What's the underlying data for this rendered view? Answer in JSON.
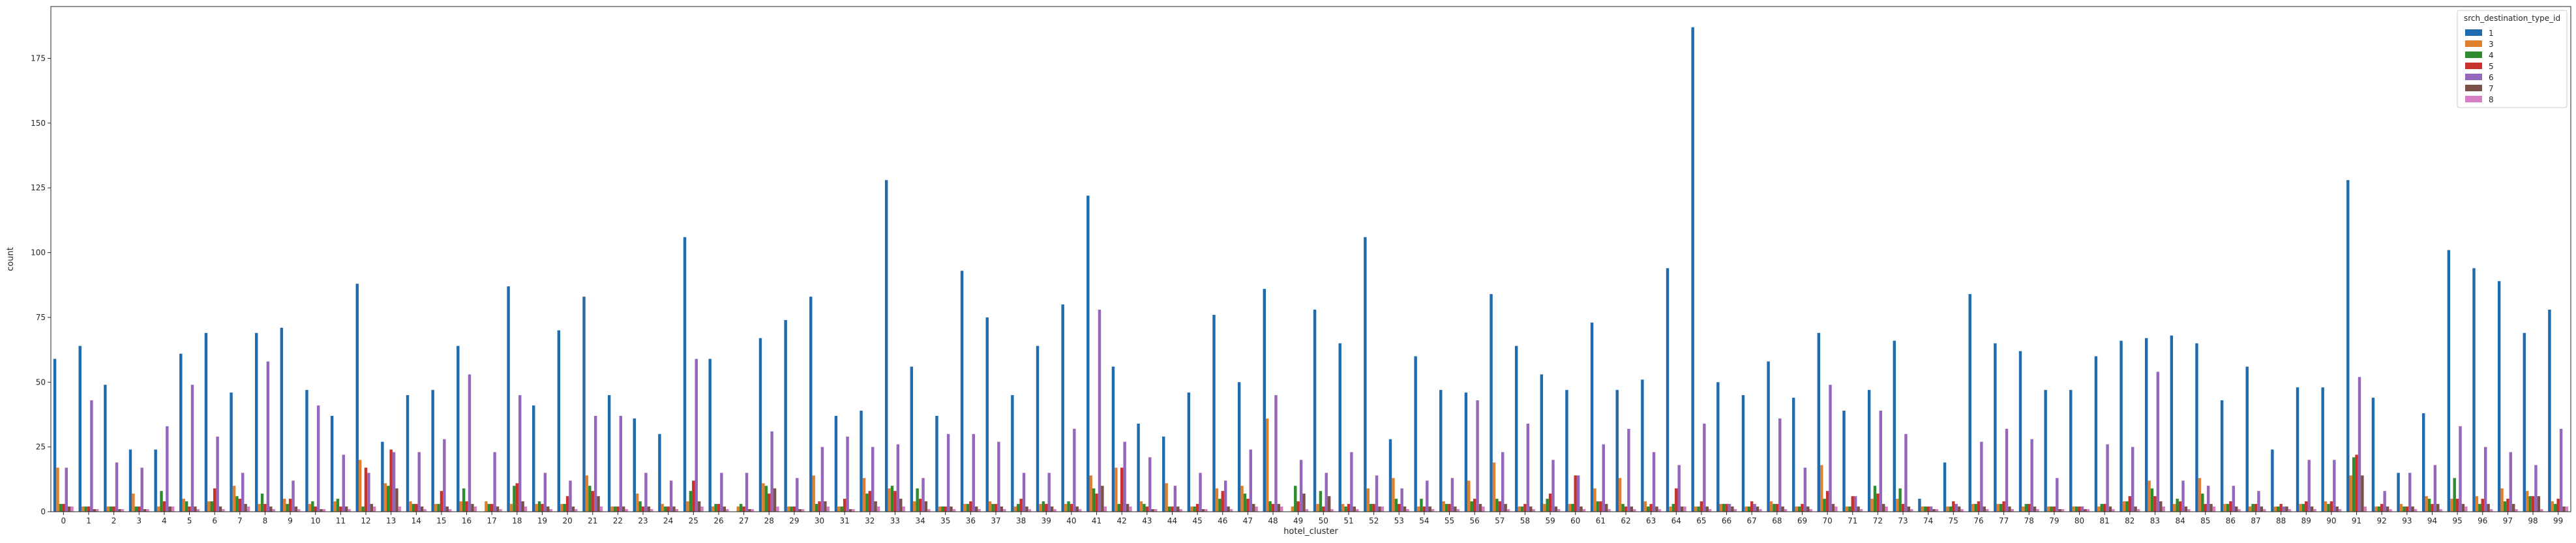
{
  "chart_data": {
    "type": "bar",
    "xlabel": "hotel_cluster",
    "ylabel": "count",
    "ylim": [
      0,
      195
    ],
    "yticks": [
      0,
      25,
      50,
      75,
      100,
      125,
      150,
      175
    ],
    "grid": false,
    "legend": {
      "title": "srch_destination_type_id",
      "placement": "top-right"
    },
    "categories": [
      "0",
      "1",
      "2",
      "3",
      "4",
      "5",
      "6",
      "7",
      "8",
      "9",
      "10",
      "11",
      "12",
      "13",
      "14",
      "15",
      "16",
      "17",
      "18",
      "19",
      "20",
      "21",
      "22",
      "23",
      "24",
      "25",
      "26",
      "27",
      "28",
      "29",
      "30",
      "31",
      "32",
      "33",
      "34",
      "35",
      "36",
      "37",
      "38",
      "39",
      "40",
      "41",
      "42",
      "43",
      "44",
      "45",
      "46",
      "47",
      "48",
      "49",
      "50",
      "51",
      "52",
      "53",
      "54",
      "55",
      "56",
      "57",
      "58",
      "59",
      "60",
      "61",
      "62",
      "63",
      "64",
      "65",
      "66",
      "67",
      "68",
      "69",
      "70",
      "71",
      "72",
      "73",
      "74",
      "75",
      "76",
      "77",
      "78",
      "79",
      "80",
      "81",
      "82",
      "83",
      "84",
      "85",
      "86",
      "87",
      "88",
      "89",
      "90",
      "91",
      "92",
      "93",
      "94",
      "95",
      "96",
      "97",
      "98",
      "99"
    ],
    "series": [
      {
        "name": "1",
        "color": "#1f6bb0",
        "values": [
          59,
          64,
          49,
          24,
          24,
          61,
          69,
          46,
          69,
          71,
          47,
          37,
          88,
          27,
          45,
          47,
          64,
          0,
          87,
          41,
          70,
          83,
          45,
          36,
          30,
          106,
          59,
          0,
          67,
          74,
          83,
          37,
          39,
          128,
          56,
          37,
          93,
          75,
          45,
          64,
          80,
          122,
          56,
          34,
          29,
          46,
          76,
          50,
          86,
          0,
          78,
          65,
          106,
          28,
          60,
          47,
          46,
          84,
          64,
          53,
          47,
          73,
          47,
          51,
          94,
          187,
          50,
          45,
          58,
          44,
          69,
          39,
          47,
          66,
          5,
          19,
          84,
          65,
          62,
          47,
          47,
          60,
          66,
          67,
          68,
          65,
          43,
          56,
          24,
          48,
          48,
          128,
          44,
          15,
          38,
          101,
          94,
          89,
          69,
          78
        ]
      },
      {
        "name": "3",
        "color": "#e0802c",
        "values": [
          17,
          2,
          2,
          7,
          2,
          5,
          4,
          10,
          3,
          5,
          3,
          4,
          20,
          11,
          4,
          3,
          4,
          4,
          3,
          3,
          3,
          14,
          2,
          7,
          3,
          4,
          2,
          2,
          11,
          2,
          14,
          2,
          13,
          9,
          4,
          2,
          3,
          4,
          2,
          3,
          3,
          14,
          17,
          4,
          11,
          2,
          9,
          10,
          36,
          2,
          3,
          3,
          9,
          13,
          2,
          4,
          12,
          19,
          2,
          3,
          3,
          9,
          13,
          4,
          2,
          2,
          3,
          2,
          4,
          2,
          18,
          2,
          5,
          5,
          2,
          2,
          3,
          3,
          2,
          2,
          2,
          2,
          4,
          12,
          3,
          13,
          3,
          2,
          2,
          3,
          4,
          14,
          2,
          3,
          6,
          5,
          6,
          9,
          8,
          4
        ]
      },
      {
        "name": "4",
        "color": "#2e8b2e",
        "values": [
          3,
          2,
          2,
          2,
          8,
          4,
          4,
          6,
          7,
          3,
          4,
          5,
          2,
          10,
          3,
          3,
          9,
          3,
          10,
          4,
          3,
          10,
          2,
          4,
          2,
          8,
          3,
          3,
          10,
          2,
          3,
          2,
          7,
          10,
          9,
          2,
          3,
          3,
          3,
          4,
          4,
          9,
          3,
          3,
          2,
          2,
          5,
          7,
          4,
          10,
          8,
          2,
          3,
          5,
          5,
          3,
          4,
          5,
          2,
          5,
          3,
          4,
          3,
          2,
          3,
          2,
          3,
          2,
          3,
          2,
          5,
          2,
          10,
          9,
          2,
          2,
          3,
          3,
          3,
          2,
          2,
          3,
          4,
          9,
          5,
          7,
          3,
          3,
          2,
          3,
          3,
          21,
          2,
          2,
          5,
          13,
          3,
          4,
          6,
          3
        ]
      },
      {
        "name": "5",
        "color": "#c7332c",
        "values": [
          3,
          2,
          2,
          2,
          4,
          2,
          9,
          5,
          3,
          5,
          2,
          2,
          17,
          24,
          3,
          8,
          4,
          3,
          11,
          3,
          6,
          8,
          2,
          2,
          2,
          12,
          3,
          2,
          7,
          2,
          4,
          5,
          8,
          8,
          5,
          2,
          4,
          3,
          5,
          3,
          3,
          7,
          17,
          2,
          2,
          3,
          8,
          5,
          3,
          4,
          2,
          3,
          3,
          3,
          2,
          3,
          5,
          4,
          3,
          7,
          14,
          4,
          2,
          3,
          9,
          4,
          3,
          4,
          3,
          3,
          8,
          6,
          7,
          3,
          2,
          4,
          4,
          4,
          3,
          2,
          2,
          3,
          6,
          6,
          4,
          3,
          4,
          3,
          3,
          4,
          4,
          22,
          3,
          2,
          3,
          5,
          5,
          5,
          6,
          5
        ]
      },
      {
        "name": "6",
        "color": "#9467bd",
        "values": [
          17,
          43,
          19,
          17,
          33,
          49,
          29,
          15,
          58,
          12,
          41,
          22,
          15,
          23,
          23,
          28,
          53,
          23,
          45,
          15,
          12,
          37,
          37,
          15,
          12,
          59,
          15,
          15,
          31,
          13,
          25,
          29,
          25,
          26,
          13,
          30,
          30,
          27,
          15,
          15,
          32,
          78,
          27,
          21,
          10,
          15,
          12,
          24,
          45,
          20,
          15,
          23,
          14,
          9,
          12,
          13,
          43,
          23,
          34,
          20,
          14,
          26,
          32,
          23,
          18,
          34,
          3,
          3,
          36,
          17,
          49,
          6,
          39,
          30,
          2,
          3,
          27,
          32,
          28,
          13,
          2,
          26,
          25,
          54,
          12,
          10,
          10,
          8,
          2,
          20,
          20,
          52,
          8,
          15,
          18,
          33,
          25,
          23,
          18,
          32
        ]
      },
      {
        "name": "7",
        "color": "#7a5048",
        "values": [
          2,
          1,
          1,
          1,
          2,
          2,
          2,
          3,
          2,
          2,
          1,
          2,
          3,
          9,
          2,
          2,
          3,
          2,
          4,
          2,
          2,
          6,
          2,
          2,
          2,
          4,
          2,
          1,
          9,
          1,
          4,
          1,
          4,
          5,
          4,
          2,
          2,
          2,
          2,
          2,
          2,
          10,
          3,
          1,
          2,
          1,
          2,
          3,
          3,
          7,
          6,
          2,
          2,
          2,
          2,
          2,
          3,
          3,
          2,
          2,
          2,
          3,
          2,
          2,
          2,
          2,
          2,
          2,
          2,
          2,
          3,
          2,
          3,
          2,
          1,
          2,
          2,
          2,
          2,
          1,
          1,
          2,
          2,
          4,
          2,
          3,
          2,
          2,
          2,
          2,
          2,
          14,
          2,
          2,
          3,
          3,
          3,
          3,
          6,
          2
        ]
      },
      {
        "name": "8",
        "color": "#d77ec2",
        "values": [
          2,
          1,
          1,
          1,
          2,
          1,
          1,
          2,
          1,
          1,
          1,
          1,
          2,
          2,
          1,
          1,
          2,
          1,
          2,
          1,
          1,
          2,
          1,
          1,
          1,
          2,
          1,
          1,
          2,
          1,
          2,
          1,
          2,
          2,
          1,
          1,
          1,
          1,
          1,
          1,
          1,
          2,
          2,
          1,
          1,
          1,
          1,
          2,
          2,
          1,
          1,
          1,
          2,
          1,
          1,
          1,
          2,
          1,
          1,
          1,
          1,
          1,
          1,
          1,
          2,
          1,
          1,
          1,
          1,
          1,
          2,
          1,
          2,
          1,
          1,
          1,
          1,
          1,
          1,
          1,
          1,
          1,
          1,
          2,
          1,
          2,
          1,
          1,
          1,
          1,
          1,
          2,
          1,
          1,
          1,
          2,
          1,
          1,
          1,
          2
        ]
      }
    ]
  }
}
